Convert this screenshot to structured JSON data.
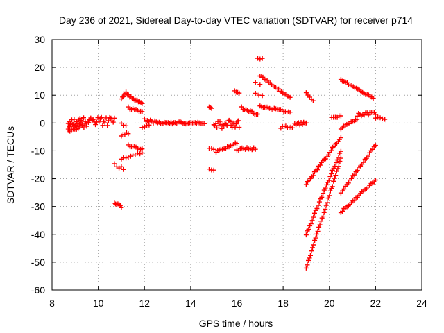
{
  "chart_data": {
    "type": "scatter",
    "title": "Day 236 of 2021, Sidereal Day-to-day VTEC variation (SDTVAR) for receiver p714",
    "xlabel": "GPS time / hours",
    "ylabel": "SDTVAR / TECUs",
    "xlim": [
      8,
      24
    ],
    "ylim": [
      -60,
      30
    ],
    "xticks": [
      "8",
      "10",
      "12",
      "14",
      "16",
      "18",
      "20",
      "22",
      "24"
    ],
    "yticks": [
      "-60",
      "-50",
      "-40",
      "-30",
      "-20",
      "-10",
      "0",
      "10",
      "20",
      "30"
    ],
    "grid": true,
    "marker": "+",
    "color": "#ff0000",
    "segments": [
      {
        "x0": 8.7,
        "x1": 10.7,
        "y0": 0.5,
        "y1": 0.5,
        "n": 40,
        "spread": 1.5
      },
      {
        "x0": 8.7,
        "x1": 9.5,
        "y0": -1.5,
        "y1": -0.5,
        "n": 14,
        "spread": 1.2
      },
      {
        "x0": 8.7,
        "x1": 9.2,
        "y0": -3.0,
        "y1": -2.0,
        "n": 8,
        "spread": 0.6
      },
      {
        "x0": 11.2,
        "x1": 11.9,
        "y0": 10.5,
        "y1": 7.0,
        "n": 14,
        "spread": 0.4
      },
      {
        "x0": 11.0,
        "x1": 11.2,
        "y0": 8.5,
        "y1": 11.0,
        "n": 5,
        "spread": 0.3
      },
      {
        "x0": 11.3,
        "x1": 11.9,
        "y0": 5.5,
        "y1": 4.0,
        "n": 10,
        "spread": 0.3
      },
      {
        "x0": 11.3,
        "x1": 11.9,
        "y0": -8.0,
        "y1": -9.5,
        "n": 10,
        "spread": 0.3
      },
      {
        "x0": 11.0,
        "x1": 11.9,
        "y0": -13.0,
        "y1": -10.5,
        "n": 10,
        "spread": 0.3
      },
      {
        "x0": 10.7,
        "x1": 11.1,
        "y0": -15.0,
        "y1": -16.5,
        "n": 5,
        "spread": 0.5
      },
      {
        "x0": 11.0,
        "x1": 11.3,
        "y0": -4.5,
        "y1": -3.5,
        "n": 5,
        "spread": 0.4
      },
      {
        "x0": 10.7,
        "x1": 11.0,
        "y0": -29.0,
        "y1": -30.0,
        "n": 7,
        "spread": 0.5
      },
      {
        "x0": 11.0,
        "x1": 11.2,
        "y0": 0.0,
        "y1": -1.0,
        "n": 3,
        "spread": 0.3
      },
      {
        "x0": 12.0,
        "x1": 12.7,
        "y0": 1.0,
        "y1": 0.0,
        "n": 12,
        "spread": 0.5
      },
      {
        "x0": 11.9,
        "x1": 12.2,
        "y0": -1.5,
        "y1": -1.0,
        "n": 4,
        "spread": 0.3
      },
      {
        "x0": 12.8,
        "x1": 14.6,
        "y0": 0.0,
        "y1": 0.0,
        "n": 32,
        "spread": 0.4
      },
      {
        "x0": 14.8,
        "x1": 14.9,
        "y0": 6.0,
        "y1": 5.0,
        "n": 3,
        "spread": 0.3
      },
      {
        "x0": 14.8,
        "x1": 15.0,
        "y0": -9.0,
        "y1": -9.5,
        "n": 3,
        "spread": 0.3
      },
      {
        "x0": 14.8,
        "x1": 15.0,
        "y0": -16.5,
        "y1": -17.0,
        "n": 3,
        "spread": 0.3
      },
      {
        "x0": 15.0,
        "x1": 16.1,
        "y0": -0.5,
        "y1": -0.5,
        "n": 26,
        "spread": 1.5
      },
      {
        "x0": 15.1,
        "x1": 16.0,
        "y0": -10.5,
        "y1": -7.0,
        "n": 14,
        "spread": 0.4
      },
      {
        "x0": 16.0,
        "x1": 16.8,
        "y0": -9.5,
        "y1": -9.0,
        "n": 12,
        "spread": 0.5
      },
      {
        "x0": 15.9,
        "x1": 16.1,
        "y0": 11.5,
        "y1": 10.5,
        "n": 4,
        "spread": 0.3
      },
      {
        "x0": 16.2,
        "x1": 16.9,
        "y0": 5.5,
        "y1": 3.0,
        "n": 12,
        "spread": 0.4
      },
      {
        "x0": 16.9,
        "x1": 17.1,
        "y0": 23.5,
        "y1": 23.0,
        "n": 3,
        "spread": 0.3
      },
      {
        "x0": 16.8,
        "x1": 17.0,
        "y0": 14.5,
        "y1": 14.0,
        "n": 2,
        "spread": 0.3
      },
      {
        "x0": 16.8,
        "x1": 17.1,
        "y0": 10.5,
        "y1": 10.0,
        "n": 3,
        "spread": 0.3
      },
      {
        "x0": 17.0,
        "x1": 18.3,
        "y0": 17.0,
        "y1": 9.0,
        "n": 22,
        "spread": 0.3
      },
      {
        "x0": 17.0,
        "x1": 18.3,
        "y0": 6.0,
        "y1": 4.0,
        "n": 20,
        "spread": 0.3
      },
      {
        "x0": 17.9,
        "x1": 18.4,
        "y0": -1.5,
        "y1": -1.5,
        "n": 8,
        "spread": 0.4
      },
      {
        "x0": 18.5,
        "x1": 19.0,
        "y0": -0.5,
        "y1": 0.0,
        "n": 10,
        "spread": 0.6
      },
      {
        "x0": 19.0,
        "x1": 19.3,
        "y0": 11.0,
        "y1": 8.0,
        "n": 5,
        "spread": 0.3
      },
      {
        "x0": 19.0,
        "x1": 20.5,
        "y0": -22.0,
        "y1": -5.0,
        "n": 26,
        "spread": 0.4
      },
      {
        "x0": 19.0,
        "x1": 20.5,
        "y0": -40.0,
        "y1": -10.0,
        "n": 30,
        "spread": 0.4
      },
      {
        "x0": 19.0,
        "x1": 20.5,
        "y0": -52.0,
        "y1": -13.0,
        "n": 34,
        "spread": 0.4
      },
      {
        "x0": 20.1,
        "x1": 20.5,
        "y0": 2.0,
        "y1": 2.5,
        "n": 6,
        "spread": 0.3
      },
      {
        "x0": 20.5,
        "x1": 21.2,
        "y0": -2.0,
        "y1": 1.5,
        "n": 12,
        "spread": 0.3
      },
      {
        "x0": 20.5,
        "x1": 21.9,
        "y0": 15.5,
        "y1": 9.0,
        "n": 22,
        "spread": 0.3
      },
      {
        "x0": 21.2,
        "x1": 22.0,
        "y0": 3.0,
        "y1": 3.5,
        "n": 14,
        "spread": 0.5
      },
      {
        "x0": 22.0,
        "x1": 22.4,
        "y0": 2.0,
        "y1": 1.5,
        "n": 5,
        "spread": 0.3
      },
      {
        "x0": 20.5,
        "x1": 22.0,
        "y0": -25.0,
        "y1": -8.0,
        "n": 24,
        "spread": 0.3
      },
      {
        "x0": 20.5,
        "x1": 22.0,
        "y0": -32.0,
        "y1": -20.5,
        "n": 24,
        "spread": 0.3
      }
    ]
  }
}
